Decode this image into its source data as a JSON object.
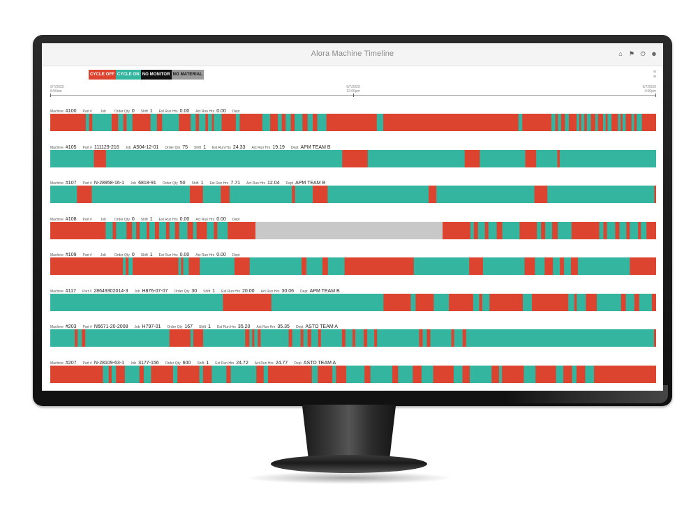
{
  "app": {
    "title": "Alora Machine Timeline"
  },
  "legend": [
    {
      "label": "CYCLE OFF",
      "bg": "#dc4430",
      "fg": "#ffffff"
    },
    {
      "label": "CYCLE ON",
      "bg": "#33b5a0",
      "fg": "#ffffff"
    },
    {
      "label": "NO MONITOR",
      "bg": "#111111",
      "fg": "#ffffff"
    },
    {
      "label": "NO MATERIAL",
      "bg": "#9a9a9a",
      "fg": "#111111"
    }
  ],
  "colors": {
    "off": "#dc4430",
    "on": "#33b5a0",
    "no_monitor": "#111111",
    "no_material": "#c8c8c8"
  },
  "toolbar_icons": [
    "home-icon",
    "flag-icon",
    "power-icon",
    "user-icon"
  ],
  "axis": {
    "ticks": [
      {
        "top": "9/7/2020",
        "bottom": "8:00am"
      },
      {
        "top": "9/7/2020",
        "bottom": "12:00pm"
      },
      {
        "top": "9/7/2020",
        "bottom": "4:00pm"
      }
    ]
  },
  "labels": {
    "machine": "Machine",
    "part": "Part #",
    "job": "Job",
    "order_qty": "Order Qty",
    "shift": "Shift",
    "est_run_hrs": "Est Run Hrs",
    "act_run_hrs": "Act Run Hrs",
    "dept": "Dept"
  },
  "machines": [
    {
      "machine": "#100",
      "part": "",
      "job": "",
      "order_qty": "0",
      "shift": "1",
      "est_run_hrs": "0.00",
      "act_run_hrs": "0.00",
      "dept": "",
      "timeline": [
        [
          "off",
          0.055
        ],
        [
          "on",
          0.005
        ],
        [
          "off",
          0.005
        ],
        [
          "on",
          0.03
        ],
        [
          "off",
          0.01
        ],
        [
          "on",
          0.008
        ],
        [
          "off",
          0.005
        ],
        [
          "on",
          0.009
        ],
        [
          "off",
          0.028
        ],
        [
          "on",
          0.01
        ],
        [
          "off",
          0.008
        ],
        [
          "on",
          0.026
        ],
        [
          "off",
          0.018
        ],
        [
          "on",
          0.008
        ],
        [
          "off",
          0.005
        ],
        [
          "on",
          0.01
        ],
        [
          "off",
          0.004
        ],
        [
          "on",
          0.006
        ],
        [
          "off",
          0.003
        ],
        [
          "on",
          0.012
        ],
        [
          "off",
          0.022
        ],
        [
          "on",
          0.006
        ],
        [
          "off",
          0.035
        ],
        [
          "on",
          0.012
        ],
        [
          "off",
          0.012
        ],
        [
          "on",
          0.006
        ],
        [
          "off",
          0.006
        ],
        [
          "on",
          0.008
        ],
        [
          "off",
          0.006
        ],
        [
          "on",
          0.012
        ],
        [
          "off",
          0.008
        ],
        [
          "on",
          0.008
        ],
        [
          "off",
          0.007
        ],
        [
          "on",
          0.014
        ],
        [
          "off",
          0.078
        ],
        [
          "on",
          0.01
        ],
        [
          "off",
          0.209
        ],
        [
          "on",
          0.006
        ],
        [
          "off",
          0.045
        ],
        [
          "on",
          0.006
        ],
        [
          "off",
          0.004
        ],
        [
          "on",
          0.005
        ],
        [
          "off",
          0.006
        ],
        [
          "on",
          0.006
        ],
        [
          "off",
          0.012
        ],
        [
          "on",
          0.004
        ],
        [
          "off",
          0.003
        ],
        [
          "on",
          0.005
        ],
        [
          "off",
          0.004
        ],
        [
          "on",
          0.006
        ],
        [
          "off",
          0.007
        ],
        [
          "on",
          0.004
        ],
        [
          "off",
          0.008
        ],
        [
          "on",
          0.004
        ],
        [
          "off",
          0.003
        ],
        [
          "on",
          0.006
        ],
        [
          "off",
          0.01
        ],
        [
          "on",
          0.004
        ],
        [
          "off",
          0.003
        ],
        [
          "on",
          0.005
        ],
        [
          "off",
          0.009
        ],
        [
          "on",
          0.004
        ],
        [
          "off",
          0.004
        ],
        [
          "on",
          0.008
        ],
        [
          "off",
          0.022
        ]
      ]
    },
    {
      "machine": "#105",
      "part": "111129-216",
      "job": "A504-12-01",
      "order_qty": "75",
      "shift": "1",
      "est_run_hrs": "24.33",
      "act_run_hrs": "19.19",
      "dept": "APM TEAM B",
      "timeline": [
        [
          "on",
          0.072
        ],
        [
          "off",
          0.02
        ],
        [
          "on",
          0.39
        ],
        [
          "off",
          0.042
        ],
        [
          "on",
          0.16
        ],
        [
          "off",
          0.025
        ],
        [
          "on",
          0.075
        ],
        [
          "off",
          0.018
        ],
        [
          "on",
          0.035
        ],
        [
          "off",
          0.004
        ],
        [
          "on",
          0.159
        ]
      ]
    },
    {
      "machine": "#107",
      "part": "N-28958-16-1",
      "job": "6818-91",
      "order_qty": "50",
      "shift": "1",
      "est_run_hrs": "7.71",
      "act_run_hrs": "12.04",
      "dept": "APM TEAM B",
      "timeline": [
        [
          "on",
          0.045
        ],
        [
          "off",
          0.025
        ],
        [
          "on",
          0.165
        ],
        [
          "off",
          0.022
        ],
        [
          "on",
          0.03
        ],
        [
          "off",
          0.015
        ],
        [
          "on",
          0.105
        ],
        [
          "off",
          0.005
        ],
        [
          "on",
          0.03
        ],
        [
          "off",
          0.025
        ],
        [
          "on",
          0.17
        ],
        [
          "off",
          0.013
        ],
        [
          "on",
          0.165
        ],
        [
          "off",
          0.022
        ],
        [
          "on",
          0.18
        ],
        [
          "off",
          0.003
        ]
      ]
    },
    {
      "machine": "#108",
      "part": "",
      "job": "",
      "order_qty": "0",
      "shift": "1",
      "est_run_hrs": "0.00",
      "act_run_hrs": "0.00",
      "dept": "",
      "timeline": [
        [
          "off",
          0.08
        ],
        [
          "on",
          0.01
        ],
        [
          "off",
          0.005
        ],
        [
          "on",
          0.015
        ],
        [
          "off",
          0.008
        ],
        [
          "on",
          0.006
        ],
        [
          "off",
          0.005
        ],
        [
          "on",
          0.01
        ],
        [
          "off",
          0.004
        ],
        [
          "on",
          0.008
        ],
        [
          "off",
          0.006
        ],
        [
          "on",
          0.01
        ],
        [
          "off",
          0.005
        ],
        [
          "on",
          0.008
        ],
        [
          "off",
          0.006
        ],
        [
          "on",
          0.012
        ],
        [
          "off",
          0.008
        ],
        [
          "on",
          0.005
        ],
        [
          "off",
          0.015
        ],
        [
          "on",
          0.01
        ],
        [
          "off",
          0.005
        ],
        [
          "on",
          0.015
        ],
        [
          "off",
          0.04
        ],
        [
          "no_material",
          0.27
        ],
        [
          "off",
          0.04
        ],
        [
          "on",
          0.005
        ],
        [
          "off",
          0.006
        ],
        [
          "on",
          0.01
        ],
        [
          "off",
          0.005
        ],
        [
          "on",
          0.012
        ],
        [
          "off",
          0.008
        ],
        [
          "on",
          0.025
        ],
        [
          "off",
          0.025
        ],
        [
          "on",
          0.006
        ],
        [
          "off",
          0.006
        ],
        [
          "on",
          0.01
        ],
        [
          "off",
          0.008
        ],
        [
          "on",
          0.02
        ],
        [
          "off",
          0.04
        ],
        [
          "on",
          0.006
        ],
        [
          "off",
          0.005
        ],
        [
          "on",
          0.012
        ],
        [
          "off",
          0.006
        ],
        [
          "on",
          0.01
        ],
        [
          "off",
          0.005
        ],
        [
          "on",
          0.012
        ],
        [
          "off",
          0.004
        ],
        [
          "on",
          0.008
        ],
        [
          "off",
          0.014
        ]
      ]
    },
    {
      "machine": "#109",
      "part": "",
      "job": "",
      "order_qty": "0",
      "shift": "1",
      "est_run_hrs": "0.00",
      "act_run_hrs": "0.00",
      "dept": "",
      "timeline": [
        [
          "off",
          0.105
        ],
        [
          "on",
          0.004
        ],
        [
          "off",
          0.004
        ],
        [
          "on",
          0.006
        ],
        [
          "off",
          0.066
        ],
        [
          "on",
          0.004
        ],
        [
          "off",
          0.003
        ],
        [
          "on",
          0.008
        ],
        [
          "off",
          0.016
        ],
        [
          "on",
          0.05
        ],
        [
          "off",
          0.022
        ],
        [
          "on",
          0.075
        ],
        [
          "off",
          0.007
        ],
        [
          "on",
          0.023
        ],
        [
          "off",
          0.008
        ],
        [
          "on",
          0.024
        ],
        [
          "off",
          0.1
        ],
        [
          "on",
          0.08
        ],
        [
          "off",
          0.02
        ],
        [
          "on",
          0.06
        ],
        [
          "off",
          0.015
        ],
        [
          "on",
          0.014
        ],
        [
          "off",
          0.012
        ],
        [
          "on",
          0.01
        ],
        [
          "off",
          0.006
        ],
        [
          "on",
          0.01
        ],
        [
          "off",
          0.01
        ],
        [
          "on",
          0.075
        ],
        [
          "off",
          0.038
        ]
      ]
    },
    {
      "machine": "#117",
      "part": "28649302014-3",
      "job": "H876-07-07",
      "order_qty": "30",
      "shift": "1",
      "est_run_hrs": "20.00",
      "act_run_hrs": "30.06",
      "dept": "APM TEAM B",
      "timeline": [
        [
          "on",
          0.285
        ],
        [
          "off",
          0.08
        ],
        [
          "on",
          0.185
        ],
        [
          "off",
          0.045
        ],
        [
          "on",
          0.008
        ],
        [
          "off",
          0.03
        ],
        [
          "on",
          0.025
        ],
        [
          "off",
          0.04
        ],
        [
          "on",
          0.01
        ],
        [
          "off",
          0.005
        ],
        [
          "on",
          0.012
        ],
        [
          "off",
          0.055
        ],
        [
          "on",
          0.015
        ],
        [
          "off",
          0.06
        ],
        [
          "on",
          0.01
        ],
        [
          "off",
          0.004
        ],
        [
          "on",
          0.015
        ],
        [
          "off",
          0.018
        ],
        [
          "on",
          0.04
        ],
        [
          "off",
          0.008
        ],
        [
          "on",
          0.014
        ],
        [
          "off",
          0.008
        ],
        [
          "on",
          0.021
        ],
        [
          "off",
          0.007
        ]
      ]
    },
    {
      "machine": "#203",
      "part": "N6671-20-2008",
      "job": "H797-01",
      "order_qty": "167",
      "shift": "1",
      "est_run_hrs": "35.20",
      "act_run_hrs": "35.35",
      "dept": "ASTO TEAM A",
      "timeline": [
        [
          "on",
          0.035
        ],
        [
          "off",
          0.004
        ],
        [
          "on",
          0.006
        ],
        [
          "off",
          0.005
        ],
        [
          "on",
          0.12
        ],
        [
          "off",
          0.03
        ],
        [
          "on",
          0.004
        ],
        [
          "off",
          0.014
        ],
        [
          "on",
          0.06
        ],
        [
          "off",
          0.006
        ],
        [
          "on",
          0.004
        ],
        [
          "off",
          0.003
        ],
        [
          "on",
          0.005
        ],
        [
          "off",
          0.004
        ],
        [
          "on",
          0.04
        ],
        [
          "off",
          0.005
        ],
        [
          "on",
          0.012
        ],
        [
          "off",
          0.004
        ],
        [
          "on",
          0.006
        ],
        [
          "off",
          0.005
        ],
        [
          "on",
          0.01
        ],
        [
          "off",
          0.004
        ],
        [
          "on",
          0.03
        ],
        [
          "off",
          0.005
        ],
        [
          "on",
          0.01
        ],
        [
          "off",
          0.004
        ],
        [
          "on",
          0.012
        ],
        [
          "off",
          0.005
        ],
        [
          "on",
          0.01
        ],
        [
          "off",
          0.004
        ],
        [
          "on",
          0.06
        ],
        [
          "off",
          0.005
        ],
        [
          "on",
          0.006
        ],
        [
          "off",
          0.005
        ],
        [
          "on",
          0.03
        ],
        [
          "off",
          0.004
        ],
        [
          "on",
          0.012
        ],
        [
          "off",
          0.005
        ],
        [
          "on",
          0.268
        ],
        [
          "off",
          0.003
        ]
      ]
    },
    {
      "machine": "#207",
      "part": "N-28109-63-1",
      "job": "3177-156",
      "order_qty": "600",
      "shift": "1",
      "est_run_hrs": "24.72",
      "act_run_hrs": "24.77",
      "dept": "ASTO TEAM A",
      "timeline": [
        [
          "off",
          0.072
        ],
        [
          "on",
          0.008
        ],
        [
          "off",
          0.004
        ],
        [
          "on",
          0.006
        ],
        [
          "off",
          0.012
        ],
        [
          "on",
          0.02
        ],
        [
          "off",
          0.006
        ],
        [
          "on",
          0.01
        ],
        [
          "off",
          0.03
        ],
        [
          "on",
          0.006
        ],
        [
          "off",
          0.03
        ],
        [
          "on",
          0.005
        ],
        [
          "off",
          0.012
        ],
        [
          "on",
          0.02
        ],
        [
          "off",
          0.006
        ],
        [
          "on",
          0.035
        ],
        [
          "off",
          0.01
        ],
        [
          "on",
          0.006
        ],
        [
          "off",
          0.06
        ],
        [
          "on",
          0.008
        ],
        [
          "off",
          0.02
        ],
        [
          "on",
          0.005
        ],
        [
          "off",
          0.014
        ],
        [
          "on",
          0.025
        ],
        [
          "off",
          0.008
        ],
        [
          "on",
          0.03
        ],
        [
          "off",
          0.008
        ],
        [
          "on",
          0.02
        ],
        [
          "off",
          0.012
        ],
        [
          "on",
          0.016
        ],
        [
          "off",
          0.028
        ],
        [
          "on",
          0.012
        ],
        [
          "off",
          0.01
        ],
        [
          "on",
          0.03
        ],
        [
          "off",
          0.01
        ],
        [
          "on",
          0.004
        ],
        [
          "off",
          0.03
        ],
        [
          "on",
          0.016
        ],
        [
          "off",
          0.028
        ],
        [
          "on",
          0.01
        ],
        [
          "off",
          0.012
        ],
        [
          "on",
          0.006
        ],
        [
          "off",
          0.012
        ],
        [
          "on",
          0.012
        ],
        [
          "off",
          0.085
        ]
      ]
    }
  ]
}
